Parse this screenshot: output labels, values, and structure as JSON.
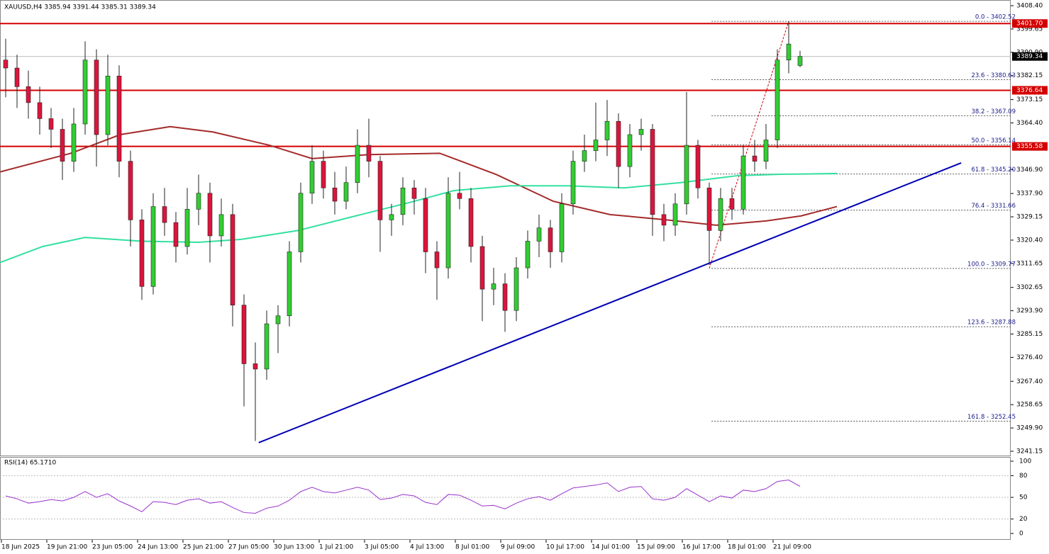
{
  "chart_data": {
    "type": "candlestick",
    "title": "XAUUSD,H4  3385.94 3391.44 3385.31 3389.34",
    "candles": [
      [
        3388,
        3396,
        3374,
        3385
      ],
      [
        3385,
        3390,
        3370,
        3378
      ],
      [
        3378,
        3384,
        3366,
        3372
      ],
      [
        3372,
        3378,
        3360,
        3366
      ],
      [
        3366,
        3370,
        3355,
        3362
      ],
      [
        3362,
        3366,
        3343,
        3350
      ],
      [
        3350,
        3370,
        3346,
        3364
      ],
      [
        3364,
        3395,
        3360,
        3388
      ],
      [
        3388,
        3392,
        3348,
        3360
      ],
      [
        3360,
        3390,
        3356,
        3382
      ],
      [
        3382,
        3386,
        3344,
        3350
      ],
      [
        3350,
        3354,
        3318,
        3328
      ],
      [
        3328,
        3332,
        3298,
        3303
      ],
      [
        3303,
        3338,
        3300,
        3333
      ],
      [
        3333,
        3340,
        3322,
        3327
      ],
      [
        3327,
        3331,
        3312,
        3318
      ],
      [
        3318,
        3340,
        3315,
        3332
      ],
      [
        3332,
        3345,
        3326,
        3338
      ],
      [
        3338,
        3342,
        3312,
        3322
      ],
      [
        3322,
        3336,
        3318,
        3330
      ],
      [
        3330,
        3334,
        3288,
        3296
      ],
      [
        3296,
        3300,
        3258,
        3274
      ],
      [
        3274,
        3282,
        3245,
        3272
      ],
      [
        3272,
        3294,
        3268,
        3289
      ],
      [
        3289,
        3296,
        3278,
        3292
      ],
      [
        3292,
        3320,
        3288,
        3316
      ],
      [
        3316,
        3342,
        3312,
        3338
      ],
      [
        3338,
        3356,
        3334,
        3350
      ],
      [
        3350,
        3354,
        3336,
        3340
      ],
      [
        3340,
        3346,
        3330,
        3335
      ],
      [
        3335,
        3348,
        3332,
        3342
      ],
      [
        3342,
        3362,
        3338,
        3356
      ],
      [
        3356,
        3366,
        3344,
        3350
      ],
      [
        3350,
        3352,
        3316,
        3328
      ],
      [
        3328,
        3334,
        3322,
        3330
      ],
      [
        3330,
        3344,
        3326,
        3340
      ],
      [
        3340,
        3343,
        3330,
        3336
      ],
      [
        3336,
        3340,
        3308,
        3316
      ],
      [
        3316,
        3320,
        3298,
        3310
      ],
      [
        3310,
        3344,
        3306,
        3338
      ],
      [
        3338,
        3346,
        3332,
        3336
      ],
      [
        3336,
        3340,
        3312,
        3318
      ],
      [
        3318,
        3322,
        3290,
        3302
      ],
      [
        3302,
        3310,
        3296,
        3304
      ],
      [
        3304,
        3308,
        3286,
        3294
      ],
      [
        3294,
        3314,
        3290,
        3310
      ],
      [
        3310,
        3324,
        3306,
        3320
      ],
      [
        3320,
        3330,
        3314,
        3325
      ],
      [
        3325,
        3328,
        3310,
        3316
      ],
      [
        3316,
        3338,
        3312,
        3334
      ],
      [
        3334,
        3354,
        3330,
        3350
      ],
      [
        3350,
        3360,
        3346,
        3354
      ],
      [
        3354,
        3372,
        3350,
        3358
      ],
      [
        3358,
        3373,
        3352,
        3365
      ],
      [
        3365,
        3368,
        3340,
        3348
      ],
      [
        3348,
        3364,
        3344,
        3360
      ],
      [
        3360,
        3366,
        3354,
        3362
      ],
      [
        3362,
        3364,
        3322,
        3330
      ],
      [
        3330,
        3334,
        3320,
        3326
      ],
      [
        3326,
        3338,
        3322,
        3334
      ],
      [
        3334,
        3376,
        3330,
        3356
      ],
      [
        3356,
        3358,
        3336,
        3340
      ],
      [
        3340,
        3342,
        3311,
        3324
      ],
      [
        3324,
        3340,
        3320,
        3336
      ],
      [
        3336,
        3340,
        3328,
        3332
      ],
      [
        3332,
        3356,
        3330,
        3352
      ],
      [
        3352,
        3358,
        3346,
        3350
      ],
      [
        3350,
        3364,
        3347,
        3358
      ],
      [
        3358,
        3392,
        3355,
        3388
      ],
      [
        3388,
        3402.52,
        3383,
        3394
      ],
      [
        3385.94,
        3391.44,
        3385.31,
        3389.34
      ]
    ],
    "up_color": "#32cd32",
    "down_color": "#dc143c",
    "moving_averages": [
      {
        "color": "#a52a2a",
        "x": [
          -0.5,
          5.75,
          10.1,
          14.5,
          18.25,
          23.25,
          27,
          32,
          38.25,
          43.25,
          48.25,
          53.25,
          58.25,
          62.6,
          67,
          70.1,
          73.25
        ],
        "values": [
          3346,
          3353,
          3360,
          3363,
          3361,
          3356,
          3351,
          3352.5,
          3353,
          3345,
          3335,
          3330,
          3328,
          3326,
          3327.6,
          3329.5,
          3333
        ]
      },
      {
        "color": "#33e0a0",
        "x": [
          -0.5,
          3.25,
          7,
          12,
          17,
          20.75,
          25.75,
          30.75,
          35.75,
          39.5,
          44.5,
          49.5,
          54.5,
          59.5,
          64.5,
          68.25,
          73.25
        ],
        "values": [
          3312,
          3318,
          3321.4,
          3320,
          3319.6,
          3320.7,
          3324,
          3329.4,
          3334.7,
          3339,
          3340.8,
          3340.8,
          3340,
          3342,
          3344.6,
          3345.1,
          3345.4
        ]
      }
    ],
    "trendline": {
      "color": "#0000b4",
      "x": [
        22.3,
        84.2
      ],
      "y": [
        3244.4,
        3349.4
      ]
    },
    "levels": [
      {
        "value": 3401.7,
        "label": "3401.70"
      },
      {
        "value": 3376.64,
        "label": "3376.64"
      },
      {
        "value": 3355.58,
        "label": "3355.58"
      }
    ],
    "level_color": "#d40000",
    "current_price": 3389.34,
    "fib": [
      {
        "value": 3402.52,
        "label": "0.0 - 3402.52"
      },
      {
        "value": 3380.63,
        "label": "23.6 - 3380.63"
      },
      {
        "value": 3367.09,
        "label": "38.2 - 3367.09"
      },
      {
        "value": 3356.14,
        "label": "50.0 - 3356.14"
      },
      {
        "value": 3345.2,
        "label": "61.8 - 3345.20"
      },
      {
        "value": 3331.66,
        "label": "76.4 - 3331.66"
      },
      {
        "value": 3309.77,
        "label": "100.0 - 3309.77"
      },
      {
        "value": 3287.88,
        "label": "123.6 - 3287.88"
      },
      {
        "value": 3252.45,
        "label": "161.8 - 3252.45"
      }
    ],
    "ylim": [
      3239.55,
      3410.53
    ],
    "yticks": [
      {
        "value": 3408.4,
        "label": "3408.40"
      },
      3399.65,
      {
        "value": 3390.9,
        "label": "3390.90"
      },
      3382.15,
      3373.15,
      {
        "value": 3364.4,
        "label": "3364.40"
      },
      {
        "value": 3346.9,
        "label": "3346.90"
      },
      {
        "value": 3337.9,
        "label": "3337.90"
      },
      3329.15,
      {
        "value": 3320.4,
        "label": "3320.40"
      },
      3311.65,
      3302.65,
      {
        "value": 3293.9,
        "label": "3293.90"
      },
      3285.15,
      {
        "value": 3276.4,
        "label": "3276.40"
      },
      {
        "value": 3267.4,
        "label": "3267.40"
      },
      3258.65,
      {
        "value": 3249.9,
        "label": "3249.90"
      },
      3241.15
    ],
    "x_labels": [
      "18 Jun 2025",
      "19 Jun 21:00",
      "23 Jun 05:00",
      "24 Jun 13:00",
      "25 Jun 21:00",
      "27 Jun 05:00",
      "30 Jun 13:00",
      "1 Jul 21:00",
      "3 Jul 05:00",
      "4 Jul 13:00",
      "8 Jul 01:00",
      "9 Jul 09:00",
      "10 Jul 17:00",
      "14 Jul 01:00",
      "15 Jul 09:00",
      "16 Jul 17:00",
      "18 Jul 01:00",
      "21 Jul 09:00"
    ],
    "rsi": {
      "label": "RSI(14) 65.1710",
      "color": "#9932cc",
      "values": [
        52,
        48,
        42,
        44,
        47,
        45,
        50,
        58,
        50,
        55,
        45,
        38,
        30,
        44,
        43,
        40,
        46,
        48,
        42,
        44,
        36,
        29,
        28,
        35,
        38,
        46,
        58,
        64,
        58,
        56,
        60,
        64,
        60,
        47,
        49,
        54,
        52,
        43,
        40,
        54,
        53,
        46,
        38,
        39,
        34,
        42,
        48,
        51,
        46,
        55,
        63,
        65,
        67,
        70,
        58,
        64,
        65,
        48,
        46,
        50,
        62,
        53,
        44,
        52,
        49,
        60,
        58,
        62,
        72,
        74,
        65.171
      ],
      "ylim": [
        -8.8,
        105.9
      ],
      "yticks": [
        100,
        80,
        50,
        20,
        0
      ],
      "levels": [
        80,
        50,
        20
      ]
    }
  }
}
